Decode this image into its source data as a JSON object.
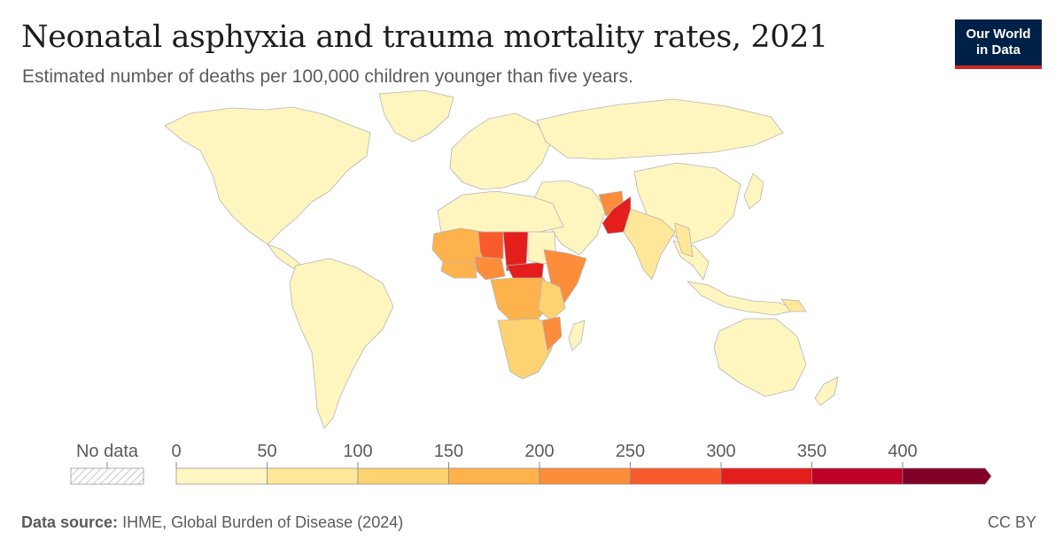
{
  "header": {
    "title": "Neonatal asphyxia and trauma mortality rates, 2021",
    "subtitle": "Estimated number of deaths per 100,000 children younger than five years."
  },
  "logo": {
    "line1": "Our World",
    "line2": "in Data"
  },
  "legend": {
    "no_data_label": "No data",
    "ticks": [
      "0",
      "50",
      "100",
      "150",
      "200",
      "250",
      "300",
      "350",
      "400"
    ],
    "colors": [
      "#fff7c3",
      "#fee798",
      "#fdd271",
      "#fdb24b",
      "#fc8d3b",
      "#fa5b2c",
      "#e31e1c",
      "#bd0026",
      "#800026"
    ]
  },
  "map": {
    "land_color": "#fff5bf",
    "border_color": "#b5b5b5"
  },
  "footer": {
    "source_label": "Data source:",
    "source_text": "IHME, Global Burden of Disease (2024)",
    "license": "CC BY"
  }
}
